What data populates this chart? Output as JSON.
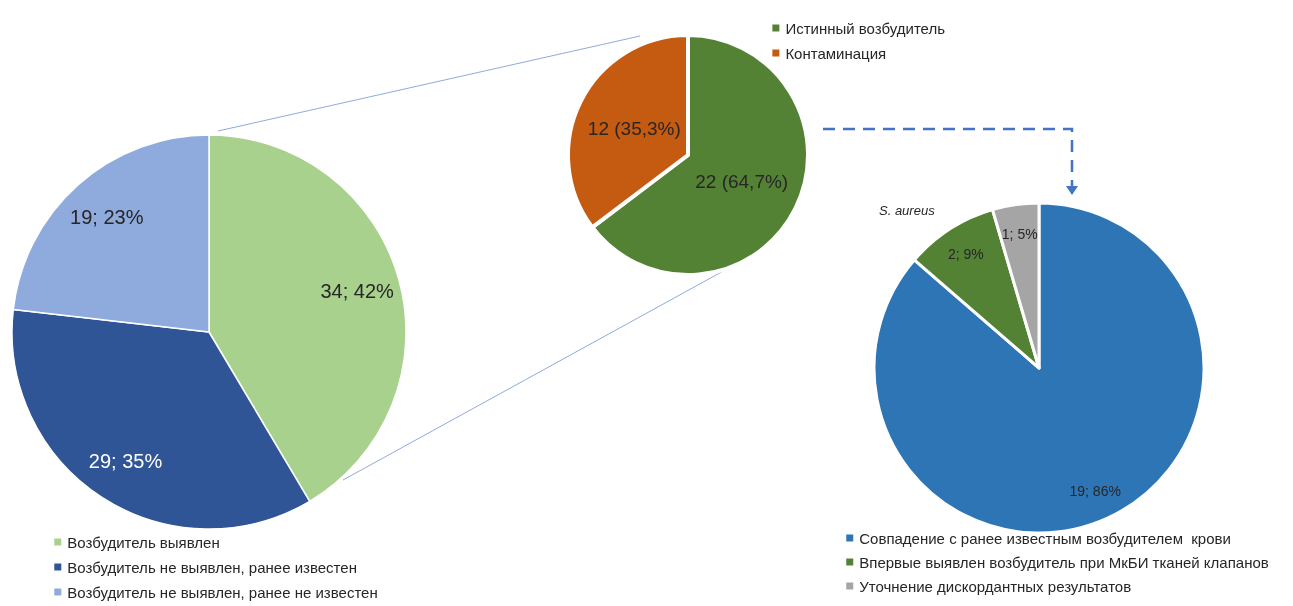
{
  "chart_data": [
    {
      "type": "pie",
      "categories": [
        "Возбудитель выявлен",
        "Возбудитель не выявлен, ранее известен",
        "Возбудитель не выявлен, ранее не известен"
      ],
      "values": [
        34,
        29,
        19
      ],
      "colors": [
        "#a9d18e",
        "#2f5597",
        "#8faadc"
      ],
      "value_labels": [
        "34; 42%",
        "29; 35%",
        "19; 23%"
      ],
      "legend": "bottom"
    },
    {
      "type": "pie",
      "categories": [
        "Истинный возбудитель",
        "Контаминация"
      ],
      "values": [
        22,
        12
      ],
      "colors": [
        "#548235",
        "#c55a11"
      ],
      "value_labels": [
        "22 (64,7%)",
        "12 (35,3%)"
      ],
      "legend": "top right"
    },
    {
      "type": "pie",
      "categories": [
        "Совпадение с ранее известным возбудителем  крови",
        "Впервые выявлен возбудитель при МкБИ тканей клапанов",
        "Уточнение дискордантных результатов"
      ],
      "values": [
        19,
        2,
        1
      ],
      "colors": [
        "#2e75b6",
        "#548235",
        "#a5a5a5"
      ],
      "value_labels": [
        "19; 86%",
        "2; 9%",
        "1; 5%"
      ],
      "annotations": [
        "S. aureus"
      ],
      "legend": "bottom"
    }
  ]
}
